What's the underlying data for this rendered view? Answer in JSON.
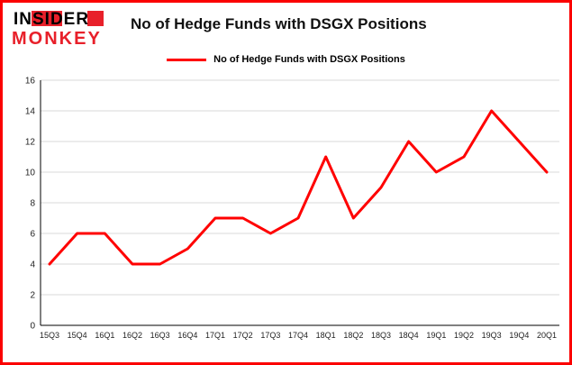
{
  "brand": {
    "line1": "INSIDER",
    "line2": "MONKEY",
    "accent_color": "#e8202a"
  },
  "header": {
    "title": "No of Hedge Funds with DSGX Positions"
  },
  "legend": {
    "label": "No of Hedge Funds with DSGX Positions",
    "color": "#ff0000"
  },
  "frame": {
    "border_color": "#fb0000"
  },
  "chart_data": {
    "type": "line",
    "title": "No of Hedge Funds with DSGX Positions",
    "categories": [
      "15Q3",
      "15Q4",
      "16Q1",
      "16Q2",
      "16Q3",
      "16Q4",
      "17Q1",
      "17Q2",
      "17Q3",
      "17Q4",
      "18Q1",
      "18Q2",
      "18Q3",
      "18Q4",
      "19Q1",
      "19Q2",
      "19Q3",
      "19Q4",
      "20Q1"
    ],
    "values": [
      4,
      6,
      6,
      4,
      4,
      5,
      7,
      7,
      6,
      7,
      11,
      7,
      9,
      12,
      10,
      11,
      14,
      12,
      10
    ],
    "xlabel": "",
    "ylabel": "",
    "ylim": [
      0,
      16
    ],
    "yticks": [
      0,
      2,
      4,
      6,
      8,
      10,
      12,
      14,
      16
    ],
    "grid": true,
    "gridline_color": "#d8d8d8",
    "axis_color": "#000000",
    "line_color": "#ff0000",
    "legend_position": "top"
  }
}
